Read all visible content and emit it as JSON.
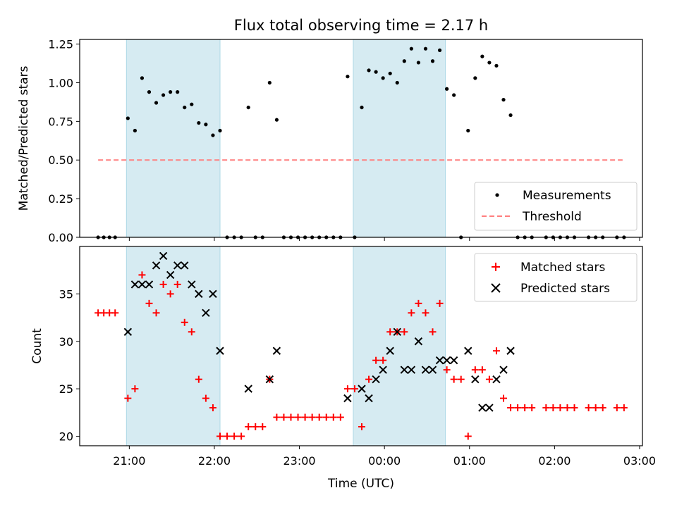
{
  "title": "Flux total observing time = 2.17 h",
  "chart_data": [
    {
      "type": "scatter",
      "ylabel": "Matched/Predicted stars",
      "xlim": [
        "20:25",
        "03:02"
      ],
      "ylim": [
        0,
        1.28
      ],
      "yticks": [
        "0.00",
        "0.25",
        "0.50",
        "0.75",
        "1.00",
        "1.25"
      ],
      "shaded_intervals": [
        [
          "20:58",
          "22:04"
        ],
        [
          "23:38",
          "00:43"
        ]
      ],
      "legend": {
        "position": "lower-right",
        "entries": [
          "Measurements",
          "Threshold"
        ]
      },
      "threshold": {
        "value": 0.5,
        "x_range": [
          "20:38",
          "02:48"
        ],
        "color": "#ff7f7f"
      },
      "series": [
        {
          "name": "Measurements",
          "color": "#000000",
          "points": [
            [
              "20:38",
              0
            ],
            [
              "20:42",
              0
            ],
            [
              "20:46",
              0
            ],
            [
              "20:50",
              0
            ],
            [
              "20:59",
              0.77
            ],
            [
              "21:04",
              0.69
            ],
            [
              "21:09",
              1.03
            ],
            [
              "21:14",
              0.94
            ],
            [
              "21:19",
              0.87
            ],
            [
              "21:24",
              0.92
            ],
            [
              "21:29",
              0.94
            ],
            [
              "21:34",
              0.94
            ],
            [
              "21:39",
              0.84
            ],
            [
              "21:44",
              0.86
            ],
            [
              "21:49",
              0.74
            ],
            [
              "21:54",
              0.73
            ],
            [
              "21:59",
              0.66
            ],
            [
              "22:04",
              0.69
            ],
            [
              "22:09",
              0
            ],
            [
              "22:14",
              0
            ],
            [
              "22:19",
              0
            ],
            [
              "22:24",
              0.84
            ],
            [
              "22:29",
              0
            ],
            [
              "22:34",
              0
            ],
            [
              "22:39",
              1.0
            ],
            [
              "22:44",
              0.76
            ],
            [
              "22:49",
              0
            ],
            [
              "22:54",
              0
            ],
            [
              "22:59",
              0
            ],
            [
              "23:04",
              0
            ],
            [
              "23:09",
              0
            ],
            [
              "23:14",
              0
            ],
            [
              "23:19",
              0
            ],
            [
              "23:24",
              0
            ],
            [
              "23:29",
              0
            ],
            [
              "23:34",
              1.04
            ],
            [
              "23:39",
              0
            ],
            [
              "23:44",
              0.84
            ],
            [
              "23:49",
              1.08
            ],
            [
              "23:54",
              1.07
            ],
            [
              "23:59",
              1.03
            ],
            [
              "00:04",
              1.06
            ],
            [
              "00:09",
              1.0
            ],
            [
              "00:14",
              1.14
            ],
            [
              "00:19",
              1.22
            ],
            [
              "00:24",
              1.13
            ],
            [
              "00:29",
              1.22
            ],
            [
              "00:34",
              1.14
            ],
            [
              "00:39",
              1.21
            ],
            [
              "00:44",
              0.96
            ],
            [
              "00:49",
              0.92
            ],
            [
              "00:54",
              0
            ],
            [
              "00:59",
              0.69
            ],
            [
              "01:04",
              1.03
            ],
            [
              "01:09",
              1.17
            ],
            [
              "01:14",
              1.13
            ],
            [
              "01:19",
              1.11
            ],
            [
              "01:24",
              0.89
            ],
            [
              "01:29",
              0.79
            ],
            [
              "01:34",
              0
            ],
            [
              "01:39",
              0
            ],
            [
              "01:44",
              0
            ],
            [
              "01:54",
              0
            ],
            [
              "01:59",
              0
            ],
            [
              "02:04",
              0
            ],
            [
              "02:09",
              0
            ],
            [
              "02:14",
              0
            ],
            [
              "02:24",
              0
            ],
            [
              "02:29",
              0
            ],
            [
              "02:34",
              0
            ],
            [
              "02:44",
              0
            ],
            [
              "02:49",
              0
            ]
          ]
        }
      ]
    },
    {
      "type": "scatter",
      "ylabel": "Count",
      "xlabel": "Time (UTC)",
      "xlim": [
        "20:25",
        "03:02"
      ],
      "ylim": [
        19,
        40
      ],
      "yticks": [
        "20",
        "25",
        "30",
        "35"
      ],
      "xticks": [
        "21:00",
        "22:00",
        "23:00",
        "00:00",
        "01:00",
        "02:00",
        "03:00"
      ],
      "shaded_intervals": [
        [
          "20:58",
          "22:04"
        ],
        [
          "23:38",
          "00:43"
        ]
      ],
      "legend": {
        "position": "top-right",
        "entries": [
          "Matched stars",
          "Predicted stars"
        ]
      },
      "series": [
        {
          "name": "Matched stars",
          "marker": "+",
          "color": "#ff0000",
          "points": [
            [
              "20:38",
              33
            ],
            [
              "20:42",
              33
            ],
            [
              "20:46",
              33
            ],
            [
              "20:50",
              33
            ],
            [
              "20:59",
              24
            ],
            [
              "21:04",
              25
            ],
            [
              "21:09",
              37
            ],
            [
              "21:14",
              34
            ],
            [
              "21:19",
              33
            ],
            [
              "21:24",
              36
            ],
            [
              "21:29",
              35
            ],
            [
              "21:34",
              36
            ],
            [
              "21:39",
              32
            ],
            [
              "21:44",
              31
            ],
            [
              "21:49",
              26
            ],
            [
              "21:54",
              24
            ],
            [
              "21:59",
              23
            ],
            [
              "22:04",
              20
            ],
            [
              "22:09",
              20
            ],
            [
              "22:14",
              20
            ],
            [
              "22:19",
              20
            ],
            [
              "22:24",
              21
            ],
            [
              "22:29",
              21
            ],
            [
              "22:34",
              21
            ],
            [
              "22:39",
              26
            ],
            [
              "22:44",
              22
            ],
            [
              "22:49",
              22
            ],
            [
              "22:54",
              22
            ],
            [
              "22:59",
              22
            ],
            [
              "23:04",
              22
            ],
            [
              "23:09",
              22
            ],
            [
              "23:14",
              22
            ],
            [
              "23:19",
              22
            ],
            [
              "23:24",
              22
            ],
            [
              "23:29",
              22
            ],
            [
              "23:34",
              25
            ],
            [
              "23:39",
              25
            ],
            [
              "23:44",
              21
            ],
            [
              "23:49",
              26
            ],
            [
              "23:54",
              28
            ],
            [
              "23:59",
              28
            ],
            [
              "00:04",
              31
            ],
            [
              "00:09",
              31
            ],
            [
              "00:14",
              31
            ],
            [
              "00:19",
              33
            ],
            [
              "00:24",
              34
            ],
            [
              "00:29",
              33
            ],
            [
              "00:34",
              31
            ],
            [
              "00:39",
              34
            ],
            [
              "00:44",
              27
            ],
            [
              "00:49",
              26
            ],
            [
              "00:54",
              26
            ],
            [
              "00:59",
              20
            ],
            [
              "01:04",
              27
            ],
            [
              "01:09",
              27
            ],
            [
              "01:14",
              26
            ],
            [
              "01:19",
              29
            ],
            [
              "01:24",
              24
            ],
            [
              "01:29",
              23
            ],
            [
              "01:34",
              23
            ],
            [
              "01:39",
              23
            ],
            [
              "01:44",
              23
            ],
            [
              "01:54",
              23
            ],
            [
              "01:59",
              23
            ],
            [
              "02:04",
              23
            ],
            [
              "02:09",
              23
            ],
            [
              "02:14",
              23
            ],
            [
              "02:24",
              23
            ],
            [
              "02:29",
              23
            ],
            [
              "02:34",
              23
            ],
            [
              "02:44",
              23
            ],
            [
              "02:49",
              23
            ]
          ]
        },
        {
          "name": "Predicted stars",
          "marker": "x",
          "color": "#000000",
          "points": [
            [
              "20:59",
              31
            ],
            [
              "21:04",
              36
            ],
            [
              "21:09",
              36
            ],
            [
              "21:14",
              36
            ],
            [
              "21:19",
              38
            ],
            [
              "21:24",
              39
            ],
            [
              "21:29",
              37
            ],
            [
              "21:34",
              38
            ],
            [
              "21:39",
              38
            ],
            [
              "21:44",
              36
            ],
            [
              "21:49",
              35
            ],
            [
              "21:54",
              33
            ],
            [
              "21:59",
              35
            ],
            [
              "22:04",
              29
            ],
            [
              "22:24",
              25
            ],
            [
              "22:39",
              26
            ],
            [
              "22:44",
              29
            ],
            [
              "23:34",
              24
            ],
            [
              "23:44",
              25
            ],
            [
              "23:49",
              24
            ],
            [
              "23:54",
              26
            ],
            [
              "23:59",
              27
            ],
            [
              "00:04",
              29
            ],
            [
              "00:09",
              31
            ],
            [
              "00:14",
              27
            ],
            [
              "00:19",
              27
            ],
            [
              "00:24",
              30
            ],
            [
              "00:29",
              27
            ],
            [
              "00:34",
              27
            ],
            [
              "00:39",
              28
            ],
            [
              "00:44",
              28
            ],
            [
              "00:49",
              28
            ],
            [
              "00:59",
              29
            ],
            [
              "01:04",
              26
            ],
            [
              "01:09",
              23
            ],
            [
              "01:14",
              23
            ],
            [
              "01:19",
              26
            ],
            [
              "01:24",
              27
            ],
            [
              "01:29",
              29
            ]
          ]
        }
      ]
    }
  ]
}
